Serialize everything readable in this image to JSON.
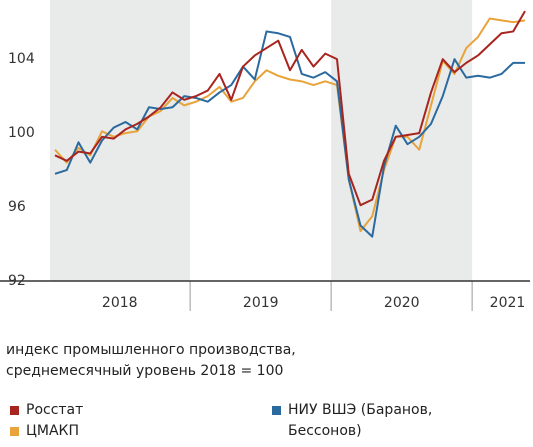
{
  "chart_data": {
    "type": "line",
    "categories": [
      null,
      null,
      null,
      null,
      null,
      "2018",
      null,
      null,
      null,
      null,
      null,
      null,
      null,
      null,
      null,
      null,
      null,
      "2019",
      null,
      null,
      null,
      null,
      null,
      null,
      null,
      null,
      null,
      null,
      null,
      "2020",
      null,
      null,
      null,
      null,
      null,
      null,
      null,
      null,
      "2021",
      null,
      null
    ],
    "series": [
      {
        "name": "Росстат",
        "color": "#a8241f",
        "values": [
          98.8,
          98.5,
          99.0,
          98.9,
          99.8,
          99.7,
          100.2,
          100.5,
          100.9,
          101.4,
          102.2,
          101.8,
          102.0,
          102.3,
          103.2,
          101.8,
          103.6,
          104.2,
          104.6,
          105.0,
          103.4,
          104.5,
          103.6,
          104.3,
          104.0,
          97.8,
          96.1,
          96.4,
          98.5,
          99.8,
          99.9,
          100.0,
          102.2,
          104.0,
          103.3,
          103.8,
          104.2,
          104.8,
          105.4,
          105.5,
          106.6
        ]
      },
      {
        "name": "ЦМАКП",
        "color": "#e8a33a",
        "values": [
          99.1,
          98.4,
          99.2,
          98.8,
          100.1,
          99.8,
          100.0,
          100.1,
          100.9,
          101.2,
          101.9,
          101.5,
          101.7,
          102.0,
          102.5,
          101.7,
          101.9,
          102.8,
          103.4,
          103.1,
          102.9,
          102.8,
          102.6,
          102.8,
          102.6,
          97.5,
          94.7,
          95.5,
          98.0,
          99.8,
          99.8,
          99.1,
          101.5,
          103.9,
          103.2,
          104.6,
          105.2,
          106.2,
          106.1,
          106.0,
          106.1
        ]
      },
      {
        "name": "НИУ ВШЭ (Баранов, Бессонов)",
        "color": "#2a6a9e",
        "values": [
          97.8,
          98.0,
          99.5,
          98.4,
          99.6,
          100.3,
          100.6,
          100.2,
          101.4,
          101.3,
          101.4,
          102.0,
          101.9,
          101.7,
          102.2,
          102.6,
          103.6,
          102.9,
          105.5,
          105.4,
          105.2,
          103.2,
          103.0,
          103.3,
          102.8,
          97.5,
          95.0,
          94.4,
          98.2,
          100.4,
          99.4,
          99.8,
          100.5,
          102.0,
          104.0,
          103.0,
          103.1,
          103.0,
          103.2,
          103.8,
          103.8
        ]
      }
    ],
    "ylim": [
      92,
      107.2
    ],
    "yticks": [
      92,
      96,
      100,
      104
    ],
    "grid": false,
    "note": [
      "индекс промышленного производства,",
      "среднемесячный уровень 2018 = 100"
    ]
  }
}
